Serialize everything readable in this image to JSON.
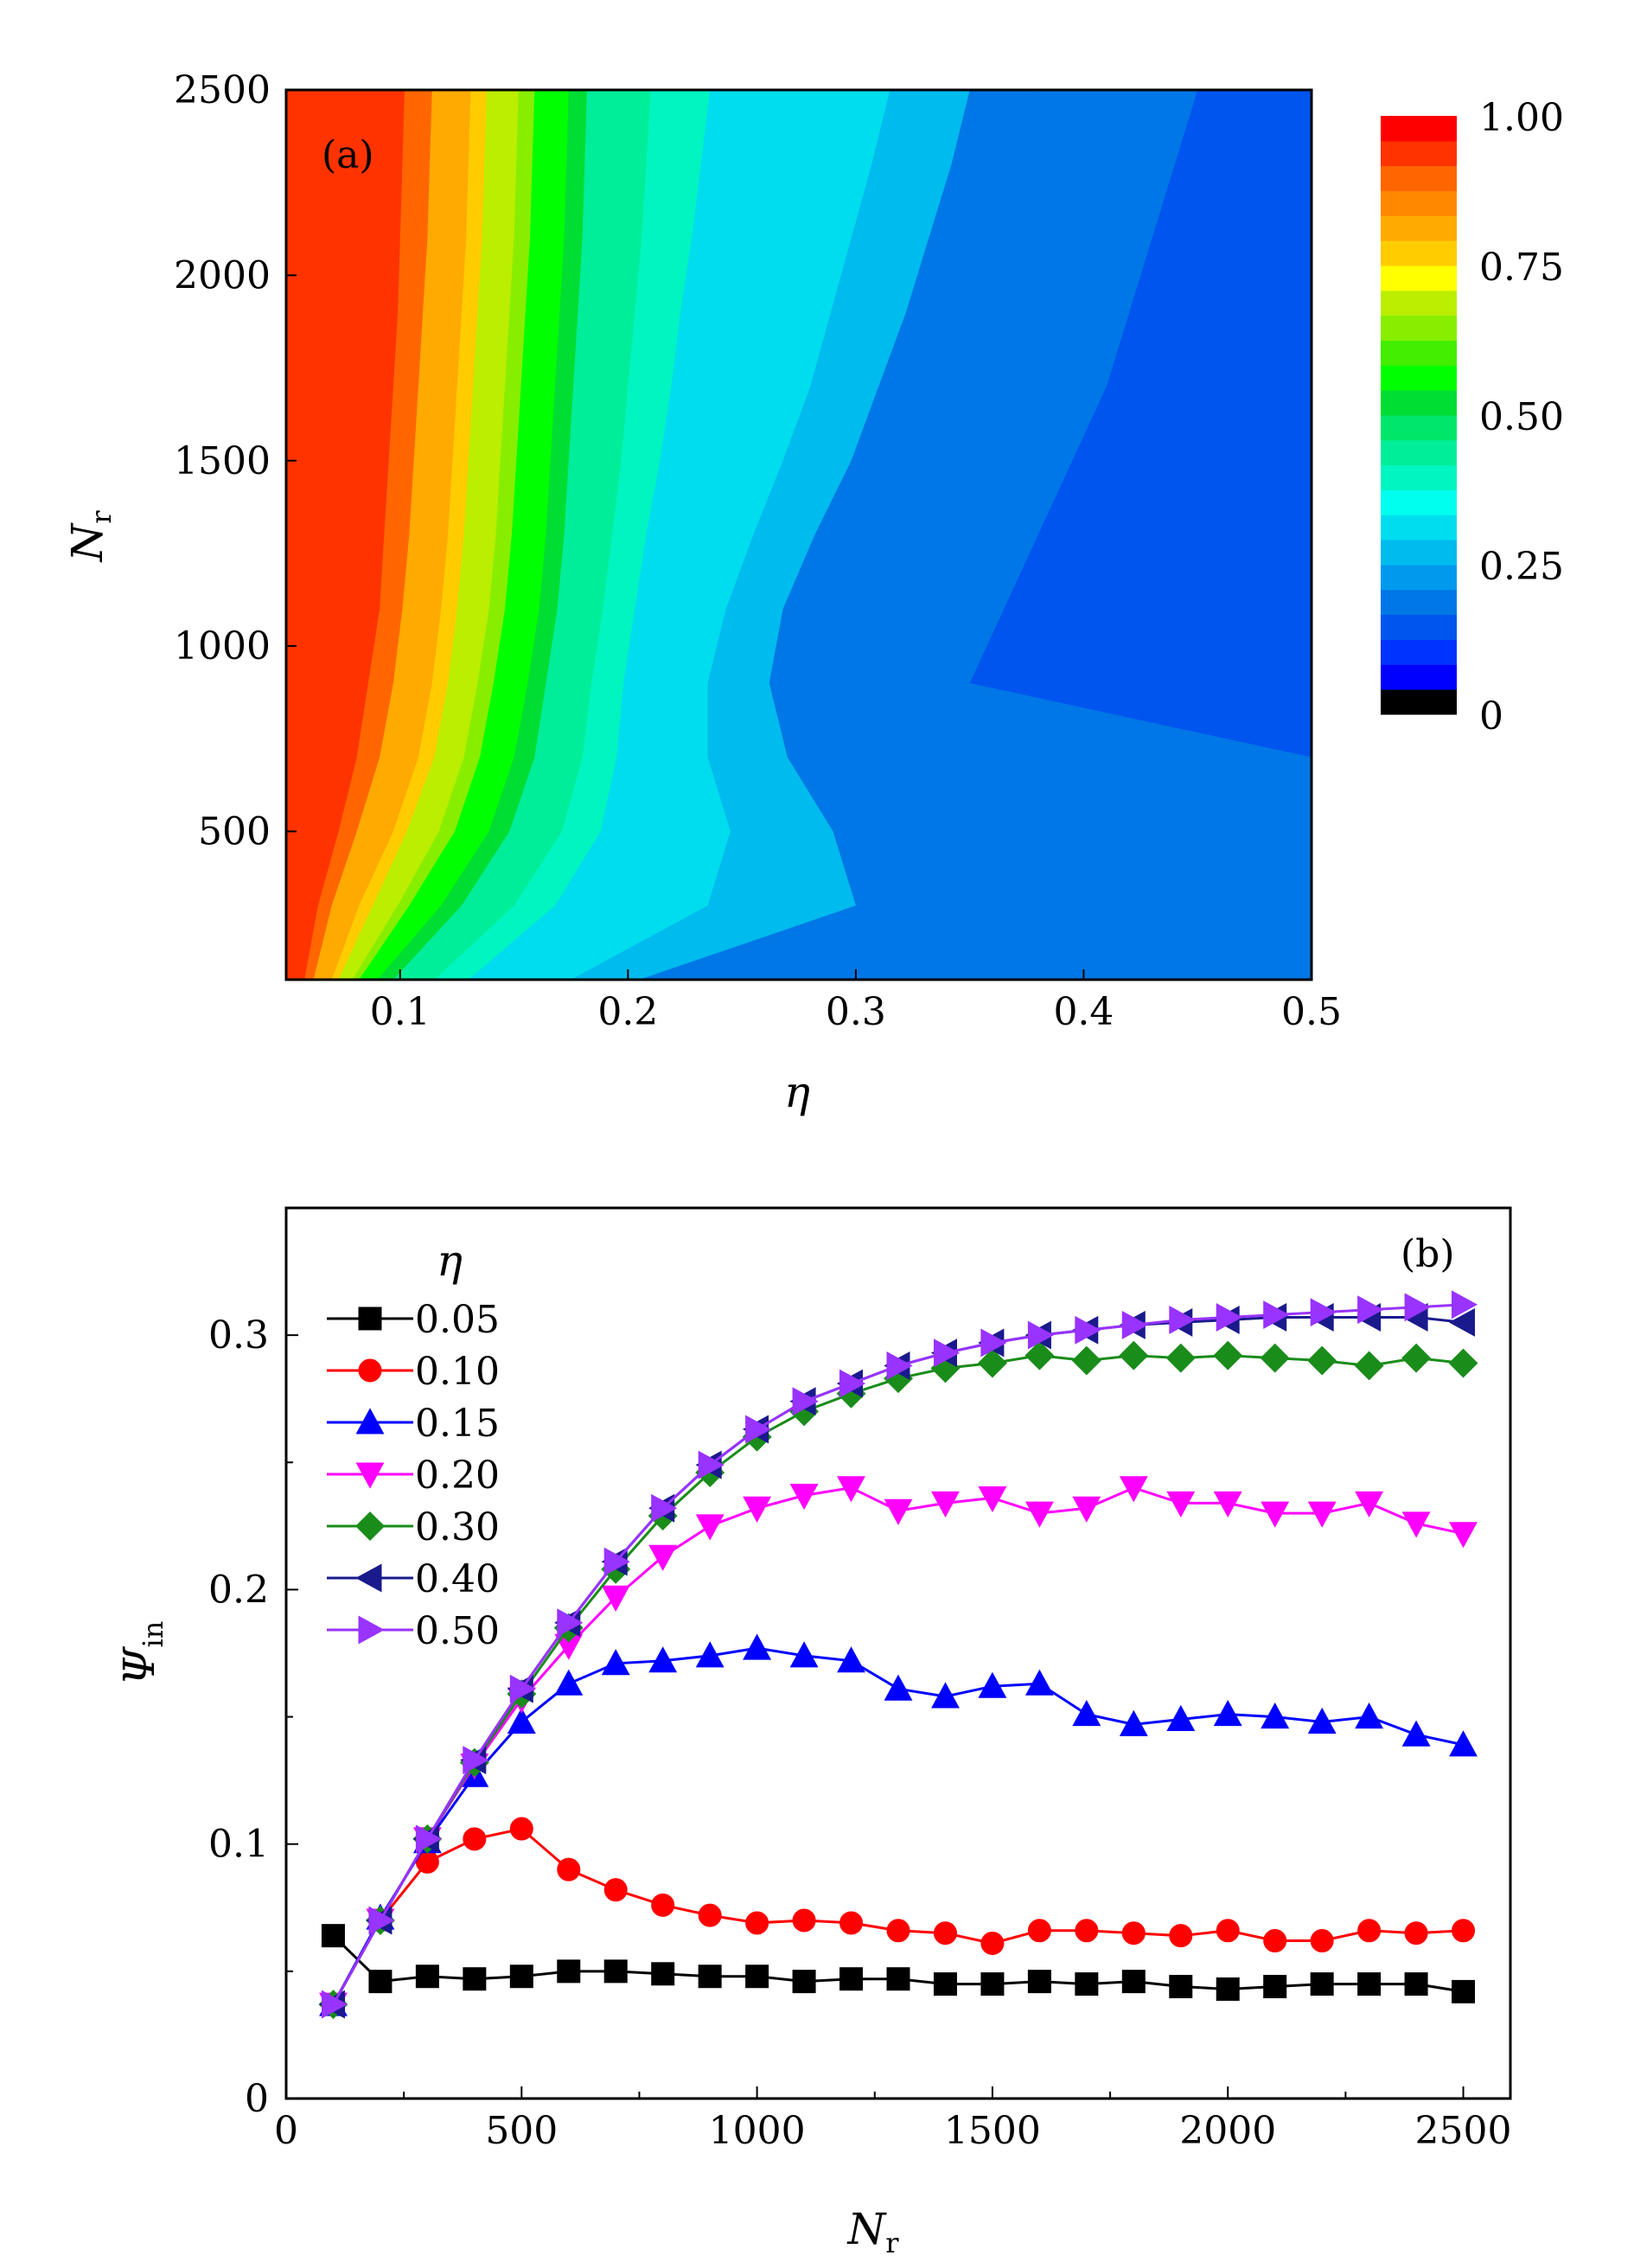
{
  "chart_data": [
    {
      "panel": "(a)",
      "type": "heatmap",
      "xlabel": "η",
      "ylabel_main": "N",
      "ylabel_sub": "r",
      "xlim": [
        0.05,
        0.5
      ],
      "ylim": [
        100,
        2500
      ],
      "xticks": [
        0.1,
        0.2,
        0.3,
        0.4,
        0.5
      ],
      "xtick_labels": [
        "0.1",
        "0.2",
        "0.3",
        "0.4",
        "0.5"
      ],
      "yticks": [
        500,
        1000,
        1500,
        2000,
        2500
      ],
      "ytick_labels": [
        "500",
        "1000",
        "1500",
        "2000",
        "2500"
      ],
      "colorbar": {
        "range": [
          0,
          1
        ],
        "ticks": [
          1.0,
          0.75,
          0.5,
          0.25,
          0
        ],
        "tick_labels": [
          "1.00",
          "0.75",
          "0.50",
          "0.25",
          "0"
        ],
        "colors": [
          "#000000",
          "#0000ff",
          "#0033ff",
          "#0055ee",
          "#0077e6",
          "#0099ee",
          "#00bbee",
          "#00ddee",
          "#00ffee",
          "#00f5c0",
          "#00ee99",
          "#00e66a",
          "#00dd33",
          "#00ff00",
          "#44ee00",
          "#88ee00",
          "#bbee00",
          "#ffff00",
          "#ffcc00",
          "#ffaa00",
          "#ff8800",
          "#ff6600",
          "#ff3300",
          "#ff0000"
        ]
      },
      "rows_Nr": [
        100,
        200,
        300,
        400,
        500,
        600,
        700,
        800,
        900,
        1000,
        1100,
        1200,
        1300,
        1400,
        1500,
        1600,
        1700,
        1800,
        1900,
        2000,
        2100,
        2200,
        2300,
        2400,
        2500
      ],
      "eta_at_levels": {
        "levels": [
          0.9583,
          0.9167,
          0.875,
          0.8333,
          0.7917,
          0.75,
          0.7083,
          0.6667,
          0.625,
          0.5833,
          0.5417,
          0.5,
          0.4583,
          0.4167,
          0.375,
          0.3333,
          0.2917,
          0.25,
          0.2083,
          0.1667,
          0.125
        ],
        "Nr_100": [
          0.054,
          0.058,
          0.062,
          0.066,
          0.07,
          0.073,
          0.076,
          0.079,
          0.082,
          0.085,
          0.09,
          0.097,
          0.105,
          0.115,
          0.13,
          0.15,
          0.175,
          0.205,
          0.24,
          0.5,
          0.5
        ],
        "Nr_300": [
          0.058,
          0.064,
          0.07,
          0.076,
          0.082,
          0.088,
          0.093,
          0.099,
          0.104,
          0.11,
          0.118,
          0.127,
          0.137,
          0.15,
          0.168,
          0.195,
          0.235,
          0.3,
          0.5,
          0.5,
          0.5
        ],
        "Nr_500": [
          0.065,
          0.073,
          0.081,
          0.089,
          0.097,
          0.103,
          0.11,
          0.117,
          0.124,
          0.131,
          0.139,
          0.148,
          0.158,
          0.171,
          0.188,
          0.212,
          0.245,
          0.29,
          0.35,
          0.5,
          0.5
        ],
        "Nr_700": [
          0.071,
          0.081,
          0.091,
          0.1,
          0.108,
          0.115,
          0.122,
          0.128,
          0.135,
          0.142,
          0.15,
          0.159,
          0.168,
          0.18,
          0.195,
          0.213,
          0.235,
          0.27,
          0.33,
          0.5,
          0.5
        ],
        "Nr_900": [
          0.076,
          0.086,
          0.097,
          0.106,
          0.114,
          0.121,
          0.128,
          0.134,
          0.141,
          0.148,
          0.156,
          0.164,
          0.173,
          0.184,
          0.198,
          0.214,
          0.235,
          0.262,
          0.295,
          0.35,
          0.5
        ],
        "Nr_1100": [
          0.08,
          0.091,
          0.101,
          0.11,
          0.118,
          0.125,
          0.132,
          0.139,
          0.146,
          0.153,
          0.161,
          0.169,
          0.178,
          0.189,
          0.203,
          0.22,
          0.243,
          0.268,
          0.3,
          0.365,
          0.5
        ],
        "Nr_1300": [
          0.082,
          0.093,
          0.104,
          0.113,
          0.121,
          0.128,
          0.135,
          0.142,
          0.149,
          0.156,
          0.164,
          0.172,
          0.181,
          0.193,
          0.208,
          0.228,
          0.255,
          0.282,
          0.31,
          0.38,
          0.5
        ],
        "Nr_1500": [
          0.084,
          0.095,
          0.106,
          0.115,
          0.123,
          0.13,
          0.137,
          0.144,
          0.151,
          0.158,
          0.166,
          0.174,
          0.184,
          0.197,
          0.214,
          0.238,
          0.268,
          0.298,
          0.322,
          0.395,
          0.5
        ],
        "Nr_1700": [
          0.085,
          0.097,
          0.108,
          0.117,
          0.125,
          0.132,
          0.139,
          0.146,
          0.153,
          0.16,
          0.168,
          0.176,
          0.186,
          0.2,
          0.219,
          0.246,
          0.28,
          0.31,
          0.338,
          0.41,
          0.5
        ],
        "Nr_1900": [
          0.087,
          0.099,
          0.11,
          0.119,
          0.127,
          0.134,
          0.141,
          0.148,
          0.155,
          0.162,
          0.17,
          0.178,
          0.188,
          0.203,
          0.223,
          0.253,
          0.289,
          0.322,
          0.352,
          0.42,
          0.5
        ],
        "Nr_2100": [
          0.088,
          0.1,
          0.112,
          0.121,
          0.129,
          0.136,
          0.143,
          0.15,
          0.157,
          0.164,
          0.172,
          0.18,
          0.19,
          0.206,
          0.228,
          0.26,
          0.298,
          0.332,
          0.365,
          0.43,
          0.5
        ],
        "Nr_2300": [
          0.089,
          0.101,
          0.113,
          0.122,
          0.13,
          0.137,
          0.144,
          0.151,
          0.158,
          0.165,
          0.173,
          0.181,
          0.192,
          0.208,
          0.232,
          0.267,
          0.307,
          0.342,
          0.372,
          0.44,
          0.5
        ],
        "Nr_2500": [
          0.09,
          0.102,
          0.114,
          0.123,
          0.131,
          0.138,
          0.145,
          0.152,
          0.159,
          0.166,
          0.174,
          0.182,
          0.193,
          0.21,
          0.236,
          0.273,
          0.315,
          0.35,
          0.378,
          0.45,
          0.5
        ]
      }
    },
    {
      "panel": "(b)",
      "type": "line",
      "xlabel_main": "N",
      "xlabel_sub": "r",
      "ylabel_main": "Ψ",
      "ylabel_sub": "in",
      "xlim": [
        0,
        2600
      ],
      "ylim": [
        0,
        0.35
      ],
      "xticks": [
        0,
        500,
        1000,
        1500,
        2000,
        2500
      ],
      "xtick_labels": [
        "0",
        "500",
        "1000",
        "1500",
        "2000",
        "2500"
      ],
      "yticks": [
        0,
        0.1,
        0.2,
        0.3
      ],
      "ytick_labels": [
        "0",
        "0.1",
        "0.2",
        "0.3"
      ],
      "legend_title": "η",
      "x": [
        100,
        200,
        300,
        400,
        500,
        600,
        700,
        800,
        900,
        1000,
        1100,
        1200,
        1300,
        1400,
        1500,
        1600,
        1700,
        1800,
        1900,
        2000,
        2100,
        2200,
        2300,
        2400,
        2500
      ],
      "series": [
        {
          "name": "0.05",
          "color": "#000000",
          "marker": "square",
          "values": [
            0.064,
            0.046,
            0.048,
            0.047,
            0.048,
            0.05,
            0.05,
            0.049,
            0.048,
            0.048,
            0.046,
            0.047,
            0.047,
            0.045,
            0.045,
            0.046,
            0.045,
            0.046,
            0.044,
            0.043,
            0.044,
            0.045,
            0.045,
            0.045,
            0.042
          ]
        },
        {
          "name": "0.10",
          "color": "#ff0000",
          "marker": "circle",
          "values": [
            0.037,
            0.07,
            0.093,
            0.102,
            0.106,
            0.09,
            0.082,
            0.076,
            0.072,
            0.069,
            0.07,
            0.069,
            0.066,
            0.065,
            0.061,
            0.066,
            0.066,
            0.065,
            0.064,
            0.066,
            0.062,
            0.062,
            0.066,
            0.065,
            0.066
          ]
        },
        {
          "name": "0.15",
          "color": "#0000ff",
          "marker": "triangle-up",
          "values": [
            0.037,
            0.071,
            0.101,
            0.127,
            0.148,
            0.163,
            0.171,
            0.172,
            0.174,
            0.177,
            0.174,
            0.172,
            0.161,
            0.158,
            0.162,
            0.163,
            0.151,
            0.147,
            0.149,
            0.151,
            0.15,
            0.148,
            0.15,
            0.143,
            0.139
          ]
        },
        {
          "name": "0.20",
          "color": "#ff00ff",
          "marker": "triangle-down",
          "values": [
            0.037,
            0.07,
            0.102,
            0.131,
            0.157,
            0.178,
            0.197,
            0.213,
            0.225,
            0.232,
            0.237,
            0.24,
            0.231,
            0.234,
            0.236,
            0.23,
            0.232,
            0.24,
            0.234,
            0.234,
            0.23,
            0.23,
            0.234,
            0.226,
            0.222
          ]
        },
        {
          "name": "0.30",
          "color": "#1a8c1a",
          "marker": "diamond",
          "values": [
            0.037,
            0.07,
            0.102,
            0.132,
            0.159,
            0.185,
            0.208,
            0.229,
            0.246,
            0.26,
            0.27,
            0.277,
            0.283,
            0.287,
            0.289,
            0.292,
            0.29,
            0.292,
            0.291,
            0.292,
            0.291,
            0.29,
            0.288,
            0.291,
            0.289
          ]
        },
        {
          "name": "0.40",
          "color": "#1a1a8c",
          "marker": "triangle-left",
          "values": [
            0.037,
            0.07,
            0.102,
            0.133,
            0.161,
            0.187,
            0.211,
            0.232,
            0.249,
            0.263,
            0.274,
            0.281,
            0.288,
            0.293,
            0.297,
            0.3,
            0.302,
            0.304,
            0.305,
            0.306,
            0.307,
            0.307,
            0.307,
            0.307,
            0.305
          ]
        },
        {
          "name": "0.50",
          "color": "#9933ff",
          "marker": "triangle-right",
          "values": [
            0.037,
            0.07,
            0.102,
            0.133,
            0.161,
            0.187,
            0.211,
            0.232,
            0.249,
            0.263,
            0.274,
            0.281,
            0.288,
            0.293,
            0.297,
            0.3,
            0.302,
            0.304,
            0.306,
            0.307,
            0.308,
            0.309,
            0.31,
            0.311,
            0.312
          ]
        }
      ]
    }
  ]
}
